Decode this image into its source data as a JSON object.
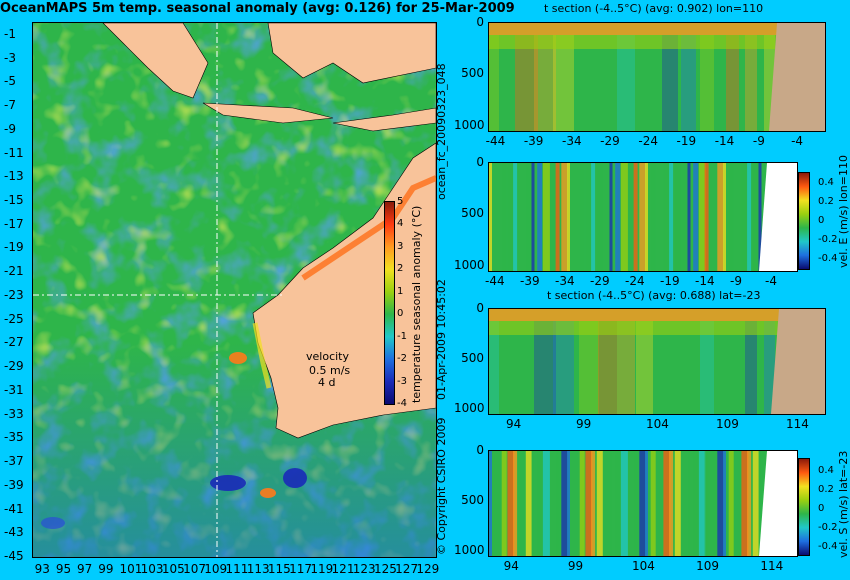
{
  "main_title": "OceanMAPS 5m temp. seasonal anomaly (avg: 0.126) for 25-Mar-2009",
  "side_texts": {
    "run_id": "ocean_fc_20090323_048",
    "timestamp": "01-Apr-2009 10:45:02",
    "copyright": "© Copyright CSIRO 2009"
  },
  "colors": {
    "background": "#00ccff",
    "land_map": "#f8c39a",
    "land_section": "#c8a888",
    "ocean_base": "#2eb54a",
    "cold": "#1e3fd0",
    "warm": "#ff7a1a"
  },
  "chart_data": [
    {
      "type": "heatmap",
      "name": "map",
      "title": "OceanMAPS 5m temp. seasonal anomaly (avg: 0.126) for 25-Mar-2009",
      "x_ticks": [
        "93",
        "95",
        "97",
        "99",
        "101",
        "103",
        "105",
        "107",
        "109",
        "111",
        "113",
        "115",
        "117",
        "119",
        "121",
        "123",
        "125",
        "127",
        "129"
      ],
      "y_ticks": [
        "-1",
        "-3",
        "-5",
        "-7",
        "-9",
        "-11",
        "-13",
        "-15",
        "-17",
        "-19",
        "-21",
        "-23",
        "-25",
        "-27",
        "-29",
        "-31",
        "-33",
        "-35",
        "-37",
        "-39",
        "-41",
        "-43",
        "-45"
      ],
      "xlim": [
        92,
        130
      ],
      "ylim": [
        -45,
        0
      ],
      "crosshair": {
        "lon": 110,
        "lat": -23
      },
      "colorbar": {
        "label": "temperature seasonal anomaly (°C)",
        "ticks": [
          "5",
          "4",
          "3",
          "2",
          "1",
          "0",
          "-1",
          "-2",
          "-3",
          "-4"
        ],
        "range": [
          -4,
          5
        ]
      },
      "velocity_legend": {
        "label": "velocity",
        "value": "0.5 m/s",
        "arrow_label": "4 d"
      }
    },
    {
      "type": "heatmap",
      "name": "t-section-lon110",
      "title": "t section (-4..5°C) (avg: 0.902) lon=110",
      "x_ticks": [
        "-44",
        "-39",
        "-34",
        "-29",
        "-24",
        "-19",
        "-14",
        "-9",
        "-4"
      ],
      "y_ticks": [
        "0",
        "500",
        "1000"
      ],
      "xlim": [
        -45,
        -1
      ],
      "ylim": [
        0,
        1050
      ]
    },
    {
      "type": "heatmap",
      "name": "velE-section-lon110",
      "title": "",
      "x_ticks": [
        "-44",
        "-39",
        "-34",
        "-29",
        "-24",
        "-19",
        "-14",
        "-9",
        "-4"
      ],
      "y_ticks": [
        "0",
        "500",
        "1000"
      ],
      "xlim": [
        -45,
        -1
      ],
      "ylim": [
        0,
        1050
      ],
      "colorbar": {
        "label": "vel. E (m/s) lon=110",
        "ticks": [
          "0.4",
          "0.2",
          "0",
          "-0.2",
          "-0.4"
        ],
        "range": [
          -0.5,
          0.5
        ]
      }
    },
    {
      "type": "heatmap",
      "name": "t-section-lat-23",
      "title": "t section (-4..5°C) (avg: 0.688) lat=-23",
      "x_ticks": [
        "94",
        "99",
        "104",
        "109",
        "114"
      ],
      "y_ticks": [
        "0",
        "500",
        "1000"
      ],
      "xlim": [
        92,
        116
      ],
      "ylim": [
        0,
        1050
      ]
    },
    {
      "type": "heatmap",
      "name": "velS-section-lat-23",
      "title": "",
      "x_ticks": [
        "94",
        "99",
        "104",
        "109",
        "114"
      ],
      "y_ticks": [
        "0",
        "500",
        "1000"
      ],
      "xlim": [
        92,
        116
      ],
      "ylim": [
        0,
        1050
      ],
      "colorbar": {
        "label": "vel. S (m/s) lat=-23",
        "ticks": [
          "0.4",
          "0.2",
          "0",
          "-0.2",
          "-0.4"
        ],
        "range": [
          -0.5,
          0.5
        ]
      }
    }
  ]
}
